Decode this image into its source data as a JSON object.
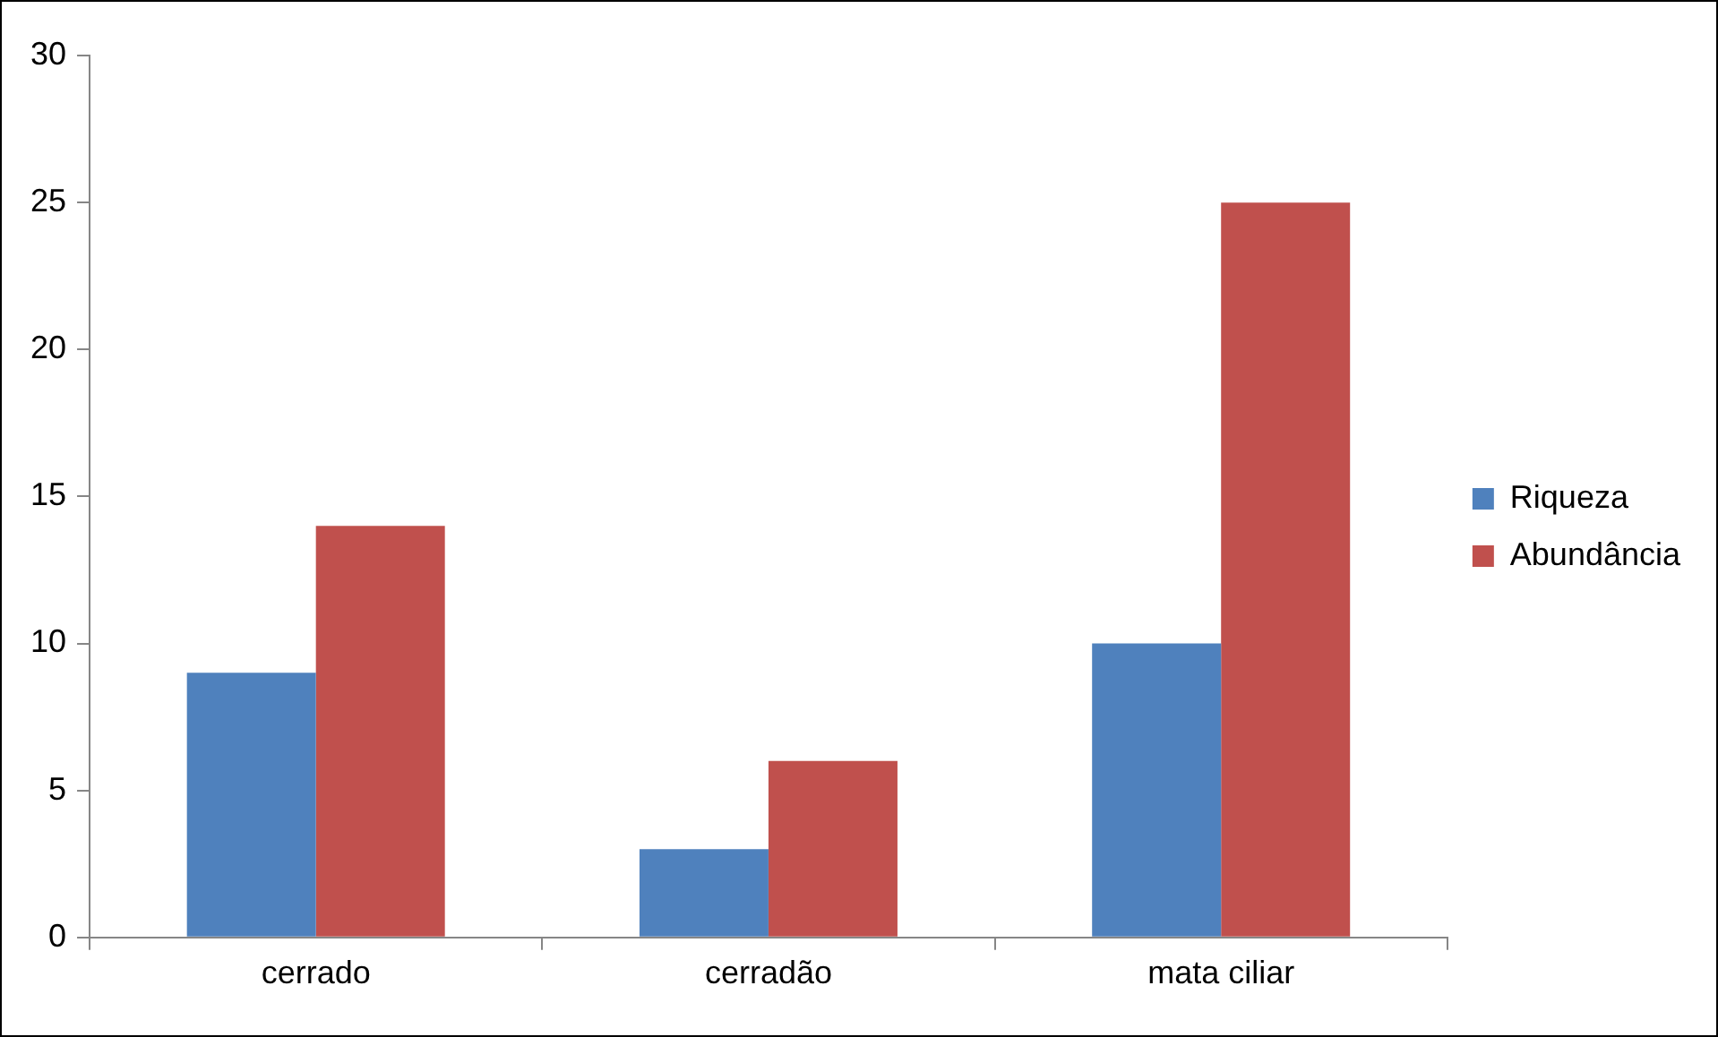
{
  "chart_data": {
    "type": "bar",
    "categories": [
      "cerrado",
      "cerradão",
      "mata ciliar"
    ],
    "series": [
      {
        "name": "Riqueza",
        "color": "#4f81bd",
        "values": [
          9,
          3,
          10
        ]
      },
      {
        "name": "Abundância",
        "color": "#c0504d",
        "values": [
          14,
          6,
          25
        ]
      }
    ],
    "ylim": [
      0,
      30
    ],
    "yticks": [
      0,
      5,
      10,
      15,
      20,
      25,
      30
    ],
    "grid": false,
    "legend": "right"
  }
}
